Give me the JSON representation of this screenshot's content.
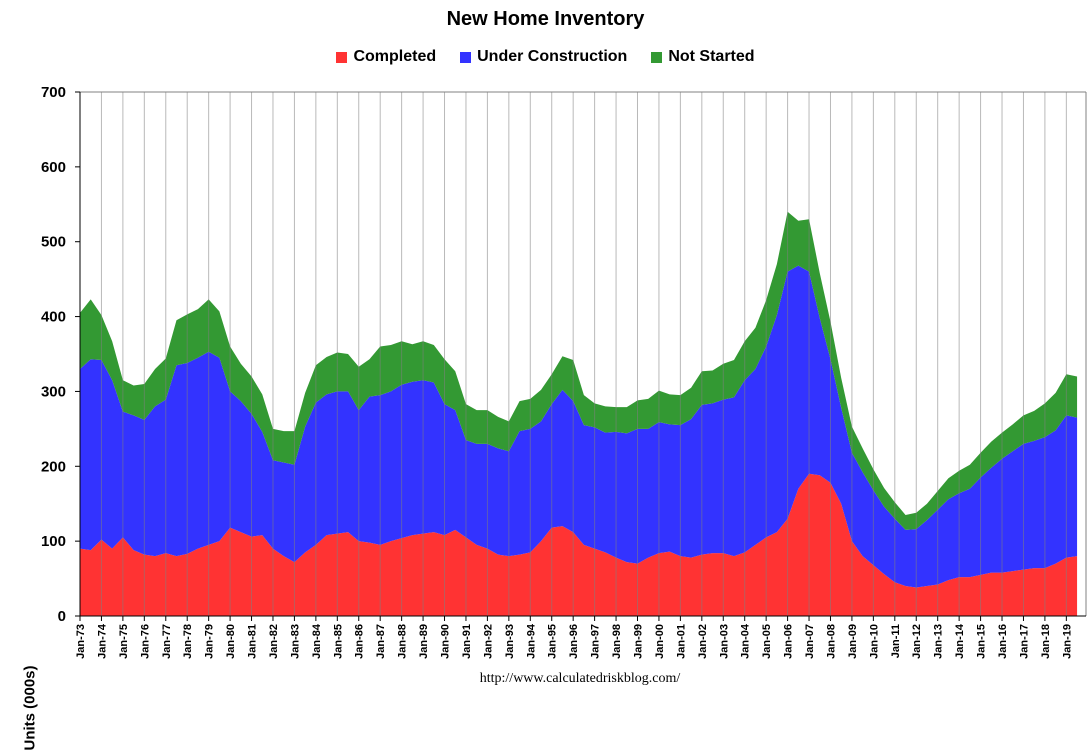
{
  "chart_data": {
    "type": "area",
    "stacked": true,
    "title": "New Home Inventory",
    "xlabel": "",
    "ylabel": "Units (000s)",
    "ylim": [
      0,
      700
    ],
    "yticks": [
      0,
      100,
      200,
      300,
      400,
      500,
      600,
      700
    ],
    "grid": "vertical",
    "legend_position": "top-center",
    "x_tick_labels": [
      "Jan-73",
      "Jan-74",
      "Jan-75",
      "Jan-76",
      "Jan-77",
      "Jan-78",
      "Jan-79",
      "Jan-80",
      "Jan-81",
      "Jan-82",
      "Jan-83",
      "Jan-84",
      "Jan-85",
      "Jan-86",
      "Jan-87",
      "Jan-88",
      "Jan-89",
      "Jan-90",
      "Jan-91",
      "Jan-92",
      "Jan-93",
      "Jan-94",
      "Jan-95",
      "Jan-96",
      "Jan-97",
      "Jan-98",
      "Jan-99",
      "Jan-00",
      "Jan-01",
      "Jan-02",
      "Jan-03",
      "Jan-04",
      "Jan-05",
      "Jan-06",
      "Jan-07",
      "Jan-08",
      "Jan-09",
      "Jan-10",
      "Jan-11",
      "Jan-12",
      "Jan-13",
      "Jan-14",
      "Jan-15",
      "Jan-16",
      "Jan-17",
      "Jan-18",
      "Jan-19"
    ],
    "x": [
      1973,
      1973.5,
      1974,
      1974.5,
      1975,
      1975.5,
      1976,
      1976.5,
      1977,
      1977.5,
      1978,
      1978.5,
      1979,
      1979.5,
      1980,
      1980.5,
      1981,
      1981.5,
      1982,
      1982.5,
      1983,
      1983.5,
      1984,
      1984.5,
      1985,
      1985.5,
      1986,
      1986.5,
      1987,
      1987.5,
      1988,
      1988.5,
      1989,
      1989.5,
      1990,
      1990.5,
      1991,
      1991.5,
      1992,
      1992.5,
      1993,
      1993.5,
      1994,
      1994.5,
      1995,
      1995.5,
      1996,
      1996.5,
      1997,
      1997.5,
      1998,
      1998.5,
      1999,
      1999.5,
      2000,
      2000.5,
      2001,
      2001.5,
      2002,
      2002.5,
      2003,
      2003.5,
      2004,
      2004.5,
      2005,
      2005.5,
      2006,
      2006.5,
      2007,
      2007.5,
      2008,
      2008.5,
      2009,
      2009.5,
      2010,
      2010.5,
      2011,
      2011.5,
      2012,
      2012.5,
      2013,
      2013.5,
      2014,
      2014.5,
      2015,
      2015.5,
      2016,
      2016.5,
      2017,
      2017.5,
      2018,
      2018.5,
      2019,
      2019.5
    ],
    "series": [
      {
        "name": "Completed",
        "color": "#ff3333",
        "values": [
          90,
          88,
          102,
          90,
          105,
          88,
          82,
          80,
          84,
          80,
          83,
          90,
          95,
          100,
          118,
          112,
          106,
          108,
          90,
          80,
          72,
          85,
          95,
          108,
          110,
          112,
          100,
          98,
          95,
          100,
          104,
          108,
          110,
          112,
          108,
          115,
          105,
          95,
          90,
          82,
          80,
          82,
          85,
          100,
          118,
          120,
          112,
          95,
          90,
          85,
          78,
          72,
          70,
          78,
          84,
          86,
          80,
          78,
          82,
          84,
          84,
          80,
          85,
          95,
          105,
          112,
          130,
          170,
          190,
          188,
          178,
          150,
          100,
          80,
          68,
          56,
          45,
          40,
          38,
          40,
          42,
          48,
          52,
          52,
          55,
          58,
          58,
          60,
          62,
          64,
          64,
          70,
          78,
          80
        ]
      },
      {
        "name": "Under Construction",
        "color": "#3333ff",
        "values": [
          240,
          255,
          240,
          225,
          168,
          180,
          180,
          200,
          205,
          255,
          255,
          255,
          258,
          245,
          182,
          175,
          164,
          138,
          118,
          125,
          130,
          168,
          190,
          188,
          190,
          188,
          175,
          195,
          200,
          200,
          205,
          205,
          205,
          200,
          175,
          160,
          130,
          135,
          140,
          142,
          140,
          165,
          165,
          160,
          165,
          182,
          175,
          160,
          162,
          160,
          168,
          172,
          180,
          172,
          175,
          170,
          175,
          185,
          200,
          200,
          205,
          212,
          230,
          235,
          255,
          290,
          330,
          298,
          270,
          210,
          165,
          128,
          118,
          112,
          100,
          90,
          85,
          75,
          78,
          88,
          100,
          108,
          112,
          118,
          130,
          140,
          152,
          160,
          168,
          170,
          175,
          178,
          190,
          185
        ]
      },
      {
        "name": "Not Started",
        "color": "#339933",
        "values": [
          75,
          80,
          60,
          52,
          42,
          40,
          48,
          50,
          55,
          60,
          65,
          65,
          70,
          62,
          60,
          50,
          50,
          50,
          42,
          42,
          45,
          45,
          50,
          50,
          52,
          50,
          58,
          50,
          65,
          62,
          58,
          50,
          52,
          50,
          60,
          52,
          48,
          45,
          45,
          42,
          40,
          40,
          40,
          42,
          40,
          45,
          55,
          40,
          32,
          35,
          33,
          35,
          38,
          40,
          42,
          40,
          40,
          42,
          45,
          44,
          48,
          50,
          52,
          55,
          62,
          68,
          80,
          60,
          70,
          60,
          50,
          40,
          35,
          32,
          28,
          25,
          22,
          20,
          22,
          22,
          25,
          28,
          30,
          32,
          33,
          35,
          35,
          36,
          38,
          40,
          45,
          50,
          55,
          55
        ]
      }
    ]
  },
  "source_url": "http://www.calculatedriskblog.com/"
}
